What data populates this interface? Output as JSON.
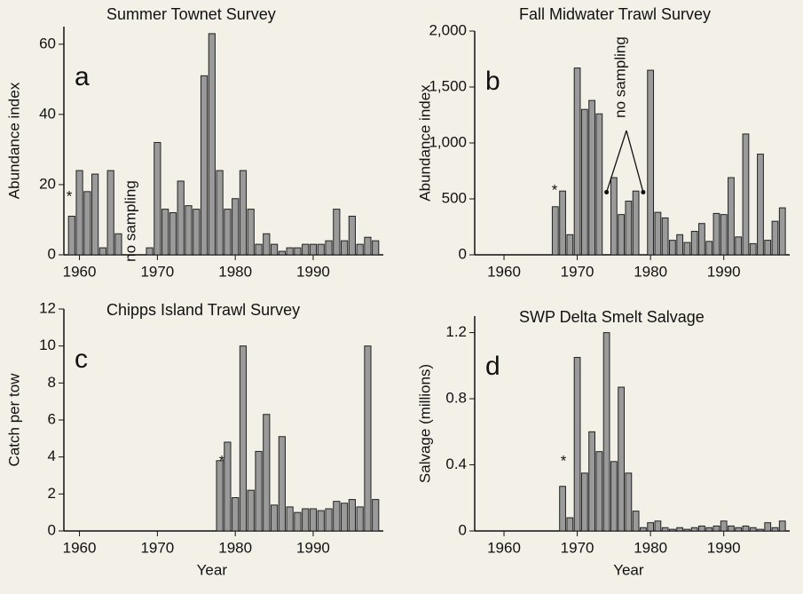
{
  "chart_data": [
    {
      "type": "bar",
      "title": "Summer Townet Survey",
      "panel": "a",
      "ylabel": "Abundance index",
      "x": [
        1959,
        1960,
        1961,
        1962,
        1963,
        1964,
        1965,
        1966,
        1967,
        1968,
        1969,
        1970,
        1971,
        1972,
        1973,
        1974,
        1975,
        1976,
        1977,
        1978,
        1979,
        1980,
        1981,
        1982,
        1983,
        1984,
        1985,
        1986,
        1987,
        1988,
        1989,
        1990,
        1991,
        1992,
        1993,
        1994,
        1995,
        1996,
        1997,
        1998
      ],
      "values": [
        11,
        24,
        18,
        23,
        2,
        24,
        6,
        null,
        null,
        null,
        2,
        32,
        13,
        12,
        21,
        14,
        13,
        51,
        63,
        24,
        13,
        16,
        24,
        13,
        3,
        6,
        3,
        1,
        2,
        2,
        3,
        3,
        3,
        4,
        13,
        4,
        11,
        3,
        5,
        4
      ],
      "color": "#9a9a9a",
      "xlim": [
        1958,
        1999
      ],
      "xticks": [
        1960,
        1970,
        1980,
        1990
      ],
      "ylim": [
        0,
        65
      ],
      "yticks": [
        0,
        20,
        40,
        60
      ],
      "annotations": [
        "*",
        "no sampling"
      ]
    },
    {
      "type": "bar",
      "title": "Fall Midwater Trawl Survey",
      "panel": "b",
      "ylabel": "Abundance index",
      "x": [
        1967,
        1968,
        1969,
        1970,
        1971,
        1972,
        1973,
        1974,
        1975,
        1976,
        1977,
        1978,
        1979,
        1980,
        1981,
        1982,
        1983,
        1984,
        1985,
        1986,
        1987,
        1988,
        1989,
        1990,
        1991,
        1992,
        1993,
        1994,
        1995,
        1996,
        1997,
        1998
      ],
      "values": [
        430,
        570,
        180,
        1670,
        1300,
        1380,
        1260,
        null,
        690,
        360,
        480,
        570,
        null,
        1650,
        380,
        330,
        130,
        180,
        110,
        210,
        280,
        120,
        370,
        360,
        690,
        160,
        1080,
        100,
        900,
        130,
        300,
        420
      ],
      "color": "#9a9a9a",
      "xlim": [
        1956,
        1999
      ],
      "xticks": [
        1960,
        1970,
        1980,
        1990
      ],
      "ylim": [
        0,
        2000
      ],
      "yticks": [
        0,
        500,
        {
          "value": 1000,
          "label": "1,000"
        },
        {
          "value": 1500,
          "label": "1,500"
        },
        {
          "value": 2000,
          "label": "2,000"
        }
      ],
      "annotations": [
        "*",
        "no sampling"
      ]
    },
    {
      "type": "bar",
      "title": "Chipps Island Trawl Survey",
      "panel": "c",
      "ylabel": "Catch per tow",
      "xlabel": "Year",
      "x": [
        1978,
        1979,
        1980,
        1981,
        1982,
        1983,
        1984,
        1985,
        1986,
        1987,
        1988,
        1989,
        1990,
        1991,
        1992,
        1993,
        1994,
        1995,
        1996,
        1997,
        1998
      ],
      "values": [
        3.8,
        4.8,
        1.8,
        10,
        2.2,
        4.3,
        6.3,
        1.4,
        5.1,
        1.3,
        1,
        1.2,
        1.2,
        1.1,
        1.2,
        1.6,
        1.5,
        1.7,
        1.3,
        10,
        1.7
      ],
      "color": "#9a9a9a",
      "xlim": [
        1958,
        1999
      ],
      "xticks": [
        1960,
        1970,
        1980,
        1990
      ],
      "ylim": [
        0,
        12
      ],
      "yticks": [
        0,
        2,
        4,
        6,
        8,
        10,
        12
      ],
      "annotations": [
        "*"
      ]
    },
    {
      "type": "bar",
      "title": "SWP Delta Smelt Salvage",
      "panel": "d",
      "ylabel": "Salvage (millions)",
      "xlabel": "Year",
      "x": [
        1968,
        1969,
        1970,
        1971,
        1972,
        1973,
        1974,
        1975,
        1976,
        1977,
        1978,
        1979,
        1980,
        1981,
        1982,
        1983,
        1984,
        1985,
        1986,
        1987,
        1988,
        1989,
        1990,
        1991,
        1992,
        1993,
        1994,
        1995,
        1996,
        1997,
        1998
      ],
      "values": [
        0.27,
        0.08,
        1.05,
        0.35,
        0.6,
        0.48,
        1.2,
        0.42,
        0.87,
        0.35,
        0.12,
        0.02,
        0.05,
        0.06,
        0.02,
        0.01,
        0.02,
        0.01,
        0.02,
        0.03,
        0.02,
        0.03,
        0.06,
        0.03,
        0.02,
        0.03,
        0.02,
        0.01,
        0.05,
        0.02,
        0.06
      ],
      "color": "#9a9a9a",
      "xlim": [
        1956,
        1999
      ],
      "xticks": [
        1960,
        1970,
        1980,
        1990
      ],
      "ylim": [
        0,
        1.3
      ],
      "yticks": [
        0,
        0.4,
        0.8,
        1.2
      ],
      "annotations": [
        "*"
      ]
    }
  ]
}
